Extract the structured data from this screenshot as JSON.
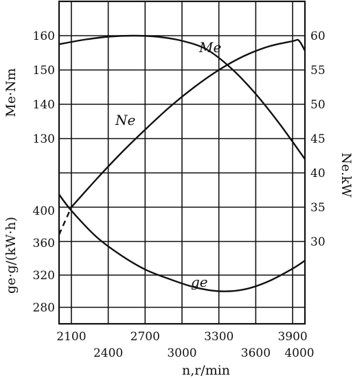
{
  "chart_data": {
    "type": "line",
    "title": "",
    "xlabel": "n,r/min",
    "ylabel_left_top": "Me·Nm",
    "ylabel_left_bottom": "ge·g/(kW·h)",
    "ylabel_right": "Ne.kW",
    "x_range": [
      2000,
      4000
    ],
    "x_ticks_upper": [
      2100,
      2700,
      3300,
      3900
    ],
    "x_ticks_lower": [
      2400,
      3000,
      3600,
      4000
    ],
    "yleft_top_range": [
      130,
      160
    ],
    "yleft_top_ticks": [
      130,
      140,
      150,
      160
    ],
    "yleft_bottom_range": [
      280,
      400
    ],
    "yleft_bottom_ticks": [
      280,
      320,
      360,
      400
    ],
    "yright_range": [
      30,
      60
    ],
    "yright_ticks": [
      30,
      35,
      40,
      45,
      50,
      55,
      60
    ],
    "grid": true,
    "series": [
      {
        "name": "Me",
        "axis": "left_top",
        "x": [
          2000,
          2200,
          2400,
          2600,
          2800,
          3000,
          3200,
          3400,
          3600,
          3800,
          4000
        ],
        "y": [
          157.5,
          158.8,
          159.7,
          160.0,
          159.7,
          158.5,
          156.0,
          150.5,
          143.0,
          134.0,
          124.0
        ]
      },
      {
        "name": "Ne",
        "axis": "right",
        "style": "solid",
        "x": [
          2100,
          2300,
          2500,
          2700,
          2900,
          3100,
          3300,
          3500,
          3700,
          3900,
          3950,
          4000
        ],
        "y": [
          35.0,
          39.0,
          42.8,
          46.3,
          49.6,
          52.5,
          55.0,
          57.0,
          58.4,
          59.2,
          59.3,
          57.8
        ]
      },
      {
        "name": "Ne (extrapolated)",
        "axis": "right",
        "style": "dashed",
        "x": [
          2000,
          2100
        ],
        "y": [
          31.0,
          35.0
        ]
      },
      {
        "name": "ge",
        "axis": "left_bottom",
        "x": [
          2000,
          2100,
          2300,
          2500,
          2700,
          2900,
          3100,
          3300,
          3500,
          3700,
          3900,
          4000
        ],
        "y": [
          420,
          400,
          368,
          345,
          327,
          315,
          305,
          300,
          302,
          312,
          328,
          338
        ]
      }
    ],
    "annotations": [
      "Me",
      "Ne",
      "ge"
    ]
  }
}
